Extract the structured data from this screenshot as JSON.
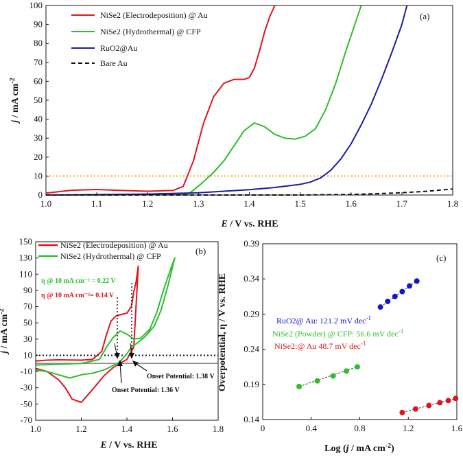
{
  "chart_data": [
    {
      "panel": "(a)",
      "type": "line",
      "xlabel_E": "E",
      "xlabel_rest": " / V vs. RHE",
      "ylabel_j": "j",
      "ylabel_rest": " / mA cm",
      "ylabel_sup": "-2",
      "xlim": [
        1.0,
        1.8
      ],
      "ylim": [
        0,
        100
      ],
      "xticks": [
        "1.0",
        "1.1",
        "1.2",
        "1.3",
        "1.4",
        "1.5",
        "1.6",
        "1.7",
        "1.8"
      ],
      "yticks": [
        "0",
        "10",
        "20",
        "30",
        "40",
        "50",
        "60",
        "70",
        "80",
        "90",
        "100"
      ],
      "reference_line": {
        "y": 10,
        "color": "#ffb000",
        "style": "dotted"
      },
      "series": [
        {
          "name": "NiSe2 (Electrodeposition) @ Au",
          "color": "#e0141e",
          "dash": "solid",
          "x": [
            1.0,
            1.05,
            1.1,
            1.15,
            1.2,
            1.25,
            1.27,
            1.29,
            1.31,
            1.33,
            1.35,
            1.37,
            1.39,
            1.4,
            1.41,
            1.42,
            1.43,
            1.44,
            1.45
          ],
          "y": [
            1.0,
            2.5,
            2.9,
            2.4,
            2.0,
            2.4,
            4.5,
            18,
            38,
            52,
            59,
            61,
            61,
            62,
            67,
            76,
            86,
            94,
            100
          ]
        },
        {
          "name": "NiSe2 (Hydrothermal) @ CFP",
          "color": "#2dbe2d",
          "dash": "solid",
          "x": [
            1.0,
            1.1,
            1.2,
            1.28,
            1.29,
            1.31,
            1.33,
            1.35,
            1.37,
            1.39,
            1.41,
            1.43,
            1.45,
            1.47,
            1.49,
            1.51,
            1.53,
            1.55,
            1.57,
            1.59,
            1.61,
            1.62
          ],
          "y": [
            0,
            0,
            0.3,
            0.5,
            2.5,
            7,
            12,
            18,
            26,
            34,
            38,
            36,
            32,
            30,
            29.5,
            31,
            35,
            45,
            59,
            76,
            92,
            100
          ]
        },
        {
          "name": "RuO2@Au",
          "color": "#1c1ca0",
          "dash": "solid",
          "x": [
            1.0,
            1.1,
            1.2,
            1.3,
            1.4,
            1.45,
            1.5,
            1.52,
            1.54,
            1.56,
            1.58,
            1.6,
            1.62,
            1.64,
            1.66,
            1.68,
            1.7,
            1.71
          ],
          "y": [
            0,
            0.2,
            0.5,
            1.2,
            2.8,
            4.0,
            5.6,
            6.8,
            9.0,
            13,
            19,
            27,
            37,
            48,
            61,
            75,
            90,
            100
          ]
        },
        {
          "name": "Bare Au",
          "color": "#111111",
          "dash": "dashed",
          "x": [
            1.0,
            1.2,
            1.4,
            1.5,
            1.6,
            1.65,
            1.7,
            1.75,
            1.8
          ],
          "y": [
            0,
            0,
            0,
            0,
            0.3,
            0.7,
            1.2,
            2.0,
            3.2
          ]
        }
      ]
    },
    {
      "panel": "(b)",
      "type": "line",
      "xlabel_E": "E",
      "xlabel_rest": " / V vs. RHE",
      "ylabel_j": "j",
      "ylabel_rest": " / mA cm",
      "ylabel_sup": "-2",
      "xlim": [
        1.0,
        1.8
      ],
      "ylim": [
        -70,
        150
      ],
      "xticks": [
        "1.0",
        "1.2",
        "1.4",
        "1.6",
        "1.8"
      ],
      "yticks": [
        "-70",
        "-50",
        "-30",
        "-10",
        "10",
        "30",
        "50",
        "70",
        "90",
        "110",
        "130",
        "150"
      ],
      "reference_lines": [
        {
          "y": 10,
          "style": "dotted"
        },
        {
          "y": 0,
          "style": "solid"
        }
      ],
      "series": [
        {
          "name": "NiSe2 (Electrodeposition) @ Au",
          "color": "#e0141e",
          "x": [
            1.0,
            1.05,
            1.1,
            1.2,
            1.25,
            1.29,
            1.31,
            1.33,
            1.35,
            1.37,
            1.4,
            1.42,
            1.43,
            1.44,
            1.45,
            1.43,
            1.4,
            1.37,
            1.34,
            1.3,
            1.25,
            1.2,
            1.16,
            1.13,
            1.1,
            1.05,
            1.0
          ],
          "y": [
            3,
            4,
            4.5,
            4,
            5,
            15,
            35,
            52,
            58,
            60,
            62,
            70,
            88,
            100,
            120,
            20,
            5,
            0,
            -5,
            -15,
            -32,
            -48,
            -44,
            -30,
            -20,
            -10,
            -6
          ]
        },
        {
          "name": "NiSe2 (Hydrothermal) @ CFP",
          "color": "#2dbe2d",
          "x": [
            1.0,
            1.1,
            1.2,
            1.28,
            1.31,
            1.34,
            1.37,
            1.4,
            1.43,
            1.46,
            1.5,
            1.53,
            1.56,
            1.59,
            1.61,
            1.58,
            1.55,
            1.52,
            1.48,
            1.45,
            1.42,
            1.4,
            1.37,
            1.33,
            1.3,
            1.25,
            1.2,
            1.15,
            1.1,
            1.05,
            1.0
          ],
          "y": [
            -2,
            -1,
            0,
            5,
            20,
            32,
            40,
            36,
            30,
            31,
            42,
            62,
            90,
            115,
            130,
            96,
            66,
            46,
            33,
            26,
            20,
            12,
            2,
            -4,
            -8,
            -12,
            -14,
            -18,
            -14,
            -10,
            -8
          ]
        }
      ],
      "annotations": [
        {
          "text": "η @ 10 mA cm⁻² = 0.22 V",
          "color": "#2dbe2d"
        },
        {
          "text": "η @ 10 mA cm⁻²= 0.14 V",
          "color": "#e0141e"
        },
        {
          "text": "Onset Potential: 1.38 V",
          "color": "#111111"
        },
        {
          "text": "Onset Potential: 1.36 V",
          "color": "#111111"
        }
      ]
    },
    {
      "panel": "(c)",
      "type": "scatter",
      "xlabel_pre": "Log (",
      "xlabel_j": "j",
      "xlabel_rest": " / mA cm",
      "xlabel_sup": "-2",
      "xlabel_close": ")",
      "ylabel": "Overpotential, η / V vs. RHE",
      "xlim": [
        0,
        1.6
      ],
      "ylim": [
        0.14,
        0.39
      ],
      "xticks": [
        "0",
        "0.4",
        "0.8",
        "1.2",
        "1.6"
      ],
      "yticks": [
        "0.14",
        "0.19",
        "0.24",
        "0.29",
        "0.34",
        "0.39"
      ],
      "series": [
        {
          "name": "RuO2@ Au: 121.2 mV dec",
          "name_sup": "-1",
          "color": "#1515c8",
          "x": [
            0.97,
            1.03,
            1.09,
            1.15,
            1.21,
            1.27
          ],
          "y": [
            0.3,
            0.308,
            0.315,
            0.322,
            0.33,
            0.337
          ]
        },
        {
          "name": "NiSe2 (Powder) @ CFP: 56.6 mV dec",
          "name_sup": "-1",
          "color": "#2dbe2d",
          "x": [
            0.3,
            0.45,
            0.58,
            0.69,
            0.78
          ],
          "y": [
            0.187,
            0.195,
            0.202,
            0.209,
            0.215
          ]
        },
        {
          "name": "NiSe2:@ Au 48.7 mV dec",
          "name_sup": "-1",
          "color": "#e0141e",
          "x": [
            1.15,
            1.26,
            1.37,
            1.46,
            1.53,
            1.59
          ],
          "y": [
            0.15,
            0.155,
            0.16,
            0.164,
            0.167,
            0.17
          ]
        }
      ]
    }
  ]
}
